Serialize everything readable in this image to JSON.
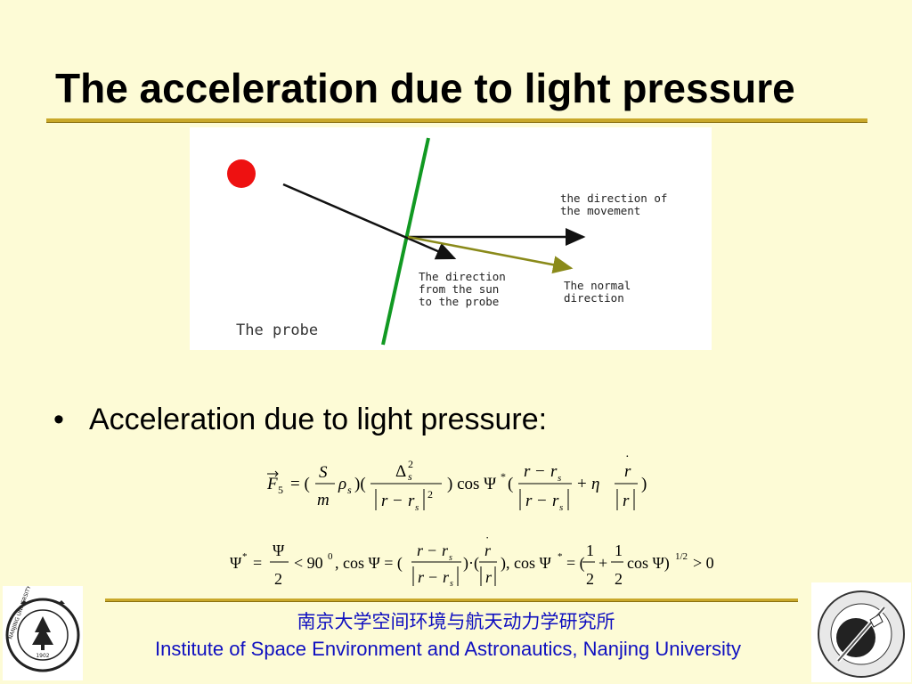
{
  "slide": {
    "title": "The acceleration due to light pressure",
    "bullet": "Acceleration due to light pressure:",
    "bullet_marker": "•"
  },
  "diagram": {
    "label_movement_line1": "the direction of",
    "label_movement_line2": "the movement",
    "label_sun_line1": "The direction",
    "label_sun_line2": "from the sun",
    "label_sun_line3": "to the probe",
    "label_normal_line1": "The normal",
    "label_normal_line2": "direction",
    "label_probe": "The probe",
    "colors": {
      "sun": "#ee1111",
      "probe_line": "#119922",
      "normal_arrow": "#8a8a1a",
      "arrows": "#111111"
    }
  },
  "formulas": {
    "f1": "F5 = (S/m ρs)(Δs² / |r − rs|²) cos Ψ* ((r − rs)/|r − rs| + η ṙ/|ṙ|)",
    "f2": "Ψ* = Ψ/2 < 90⁰, cos Ψ = ((r − rs)/|r − rs|)·(ṙ/|ṙ|), cos Ψ* = (1/2 + 1/2 cos Ψ)^(1/2) > 0"
  },
  "footer": {
    "chinese": "南京大学空间环境与航天动力学研究所",
    "english": "Institute of Space Environment and Astronautics, Nanjing University",
    "color": "#1010c0"
  },
  "logos": {
    "left_ring_text": "NANJING UNIVERSITY",
    "left_year": "1902",
    "right": "institute-emblem"
  }
}
